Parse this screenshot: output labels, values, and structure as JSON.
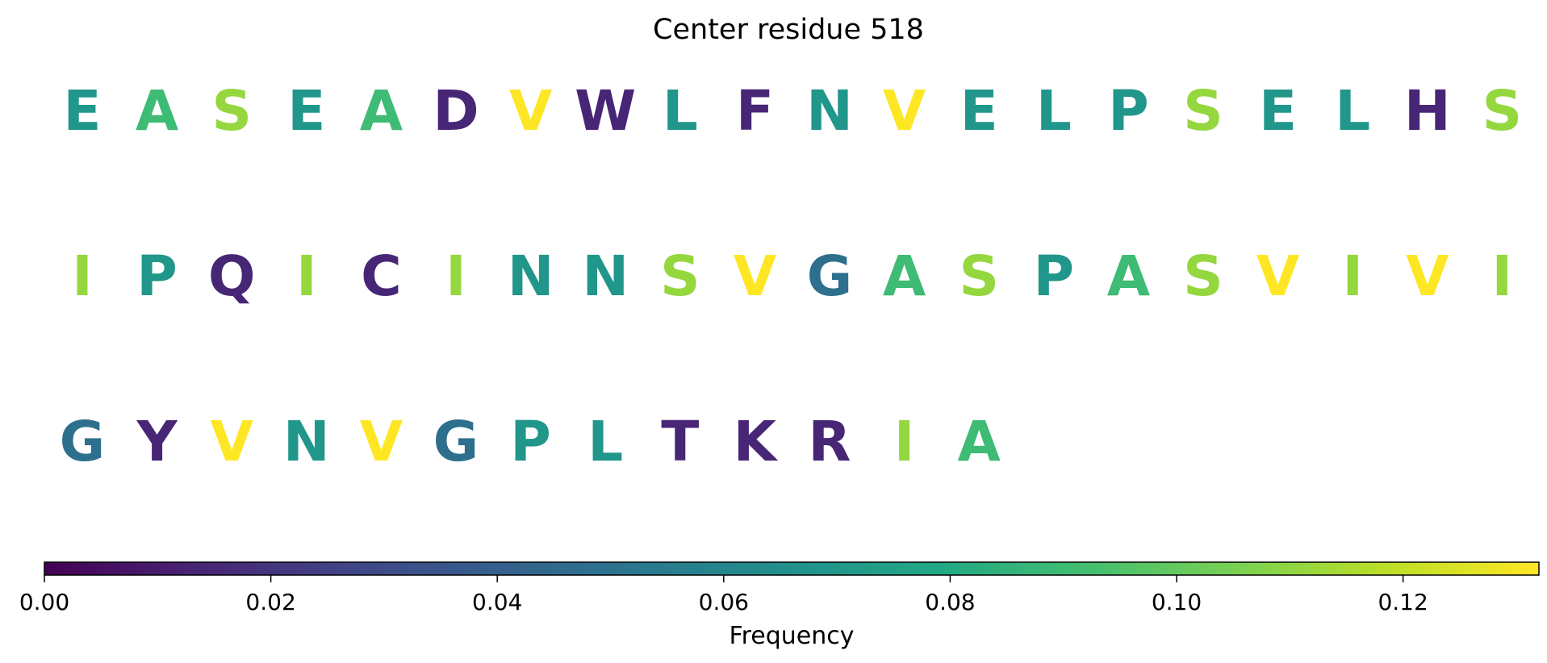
{
  "chart_data": {
    "type": "sequence-logo-heatmap",
    "title": "Center residue 518",
    "colorbar": {
      "label": "Frequency",
      "range": [
        0.0,
        0.132
      ],
      "ticks": [
        "0.00",
        "0.02",
        "0.04",
        "0.06",
        "0.08",
        "0.10",
        "0.12"
      ],
      "tick_values": [
        0.0,
        0.02,
        0.04,
        0.06,
        0.08,
        0.1,
        0.12
      ],
      "colormap": "viridis",
      "orientation": "horizontal"
    },
    "rows": [
      [
        {
          "residue": "E",
          "frequency": 0.069
        },
        {
          "residue": "A",
          "frequency": 0.09
        },
        {
          "residue": "S",
          "frequency": 0.111
        },
        {
          "residue": "E",
          "frequency": 0.069
        },
        {
          "residue": "A",
          "frequency": 0.09
        },
        {
          "residue": "D",
          "frequency": 0.014
        },
        {
          "residue": "V",
          "frequency": 0.132
        },
        {
          "residue": "W",
          "frequency": 0.014
        },
        {
          "residue": "L",
          "frequency": 0.069
        },
        {
          "residue": "F",
          "frequency": 0.014
        },
        {
          "residue": "N",
          "frequency": 0.069
        },
        {
          "residue": "V",
          "frequency": 0.132
        },
        {
          "residue": "E",
          "frequency": 0.069
        },
        {
          "residue": "L",
          "frequency": 0.069
        },
        {
          "residue": "P",
          "frequency": 0.069
        },
        {
          "residue": "S",
          "frequency": 0.111
        },
        {
          "residue": "E",
          "frequency": 0.069
        },
        {
          "residue": "L",
          "frequency": 0.069
        },
        {
          "residue": "H",
          "frequency": 0.014
        },
        {
          "residue": "S",
          "frequency": 0.111
        }
      ],
      [
        {
          "residue": "I",
          "frequency": 0.111
        },
        {
          "residue": "P",
          "frequency": 0.069
        },
        {
          "residue": "Q",
          "frequency": 0.014
        },
        {
          "residue": "I",
          "frequency": 0.111
        },
        {
          "residue": "C",
          "frequency": 0.014
        },
        {
          "residue": "I",
          "frequency": 0.111
        },
        {
          "residue": "N",
          "frequency": 0.069
        },
        {
          "residue": "N",
          "frequency": 0.069
        },
        {
          "residue": "S",
          "frequency": 0.111
        },
        {
          "residue": "V",
          "frequency": 0.132
        },
        {
          "residue": "G",
          "frequency": 0.048
        },
        {
          "residue": "A",
          "frequency": 0.09
        },
        {
          "residue": "S",
          "frequency": 0.111
        },
        {
          "residue": "P",
          "frequency": 0.069
        },
        {
          "residue": "A",
          "frequency": 0.09
        },
        {
          "residue": "S",
          "frequency": 0.111
        },
        {
          "residue": "V",
          "frequency": 0.132
        },
        {
          "residue": "I",
          "frequency": 0.111
        },
        {
          "residue": "V",
          "frequency": 0.132
        },
        {
          "residue": "I",
          "frequency": 0.111
        }
      ],
      [
        {
          "residue": "G",
          "frequency": 0.048
        },
        {
          "residue": "Y",
          "frequency": 0.014
        },
        {
          "residue": "V",
          "frequency": 0.132
        },
        {
          "residue": "N",
          "frequency": 0.069
        },
        {
          "residue": "V",
          "frequency": 0.132
        },
        {
          "residue": "G",
          "frequency": 0.048
        },
        {
          "residue": "P",
          "frequency": 0.069
        },
        {
          "residue": "L",
          "frequency": 0.069
        },
        {
          "residue": "T",
          "frequency": 0.014
        },
        {
          "residue": "K",
          "frequency": 0.014
        },
        {
          "residue": "R",
          "frequency": 0.014
        },
        {
          "residue": "I",
          "frequency": 0.111
        },
        {
          "residue": "A",
          "frequency": 0.09
        }
      ]
    ]
  }
}
